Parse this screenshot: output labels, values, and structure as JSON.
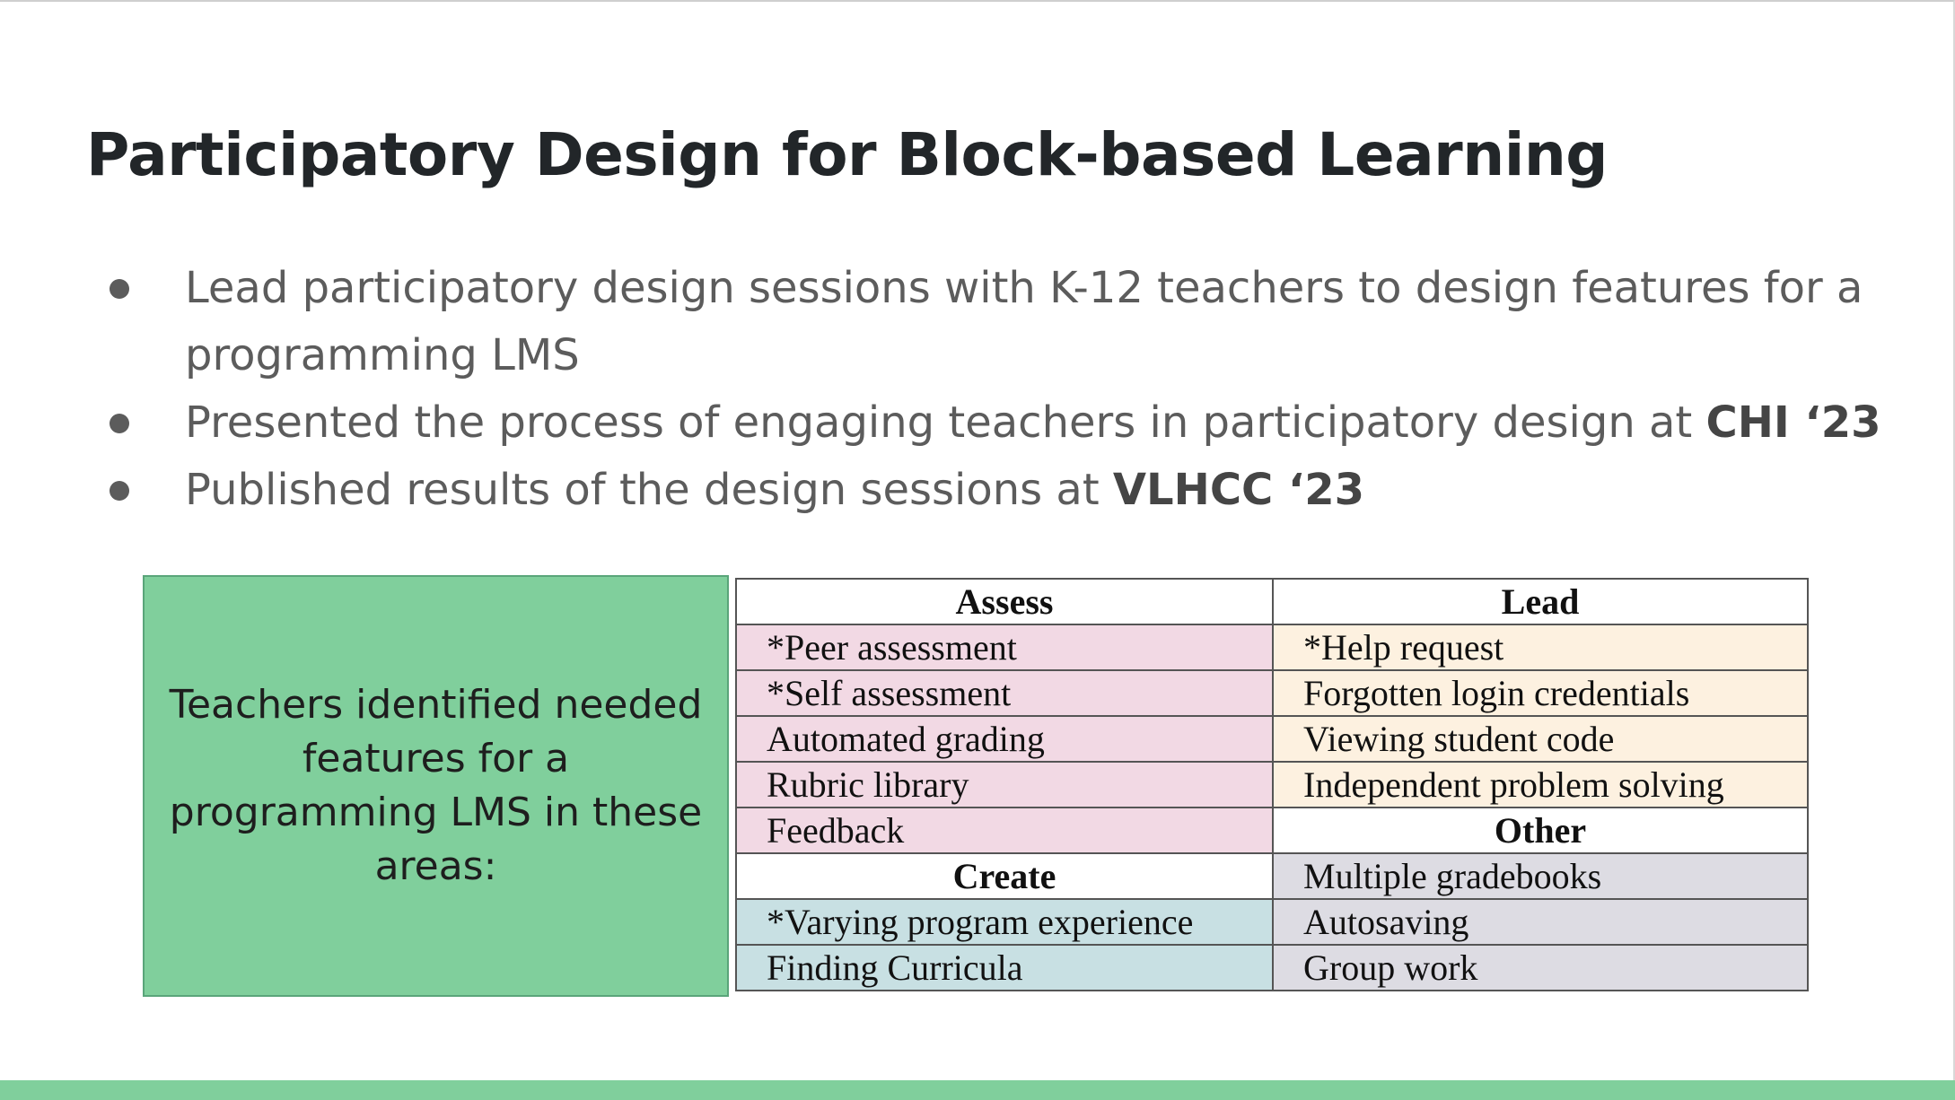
{
  "slide": {
    "title": "Participatory Design for Block-based Learning",
    "bullets": [
      {
        "text": "Lead participatory design sessions with K-12 teachers to design features for a programming LMS",
        "bold": ""
      },
      {
        "text": "Presented the process of engaging teachers in participatory design at ",
        "bold": "CHI ‘23"
      },
      {
        "text": "Published results of the design sessions at ",
        "bold": "VLHCC ‘23"
      }
    ],
    "callout": "Teachers identified needed features for a programming LMS in these areas:",
    "table": {
      "assess_header": "Assess",
      "lead_header": "Lead",
      "create_header": "Create",
      "other_header": "Other",
      "assess": [
        "*Peer assessment",
        "*Self assessment",
        "Automated grading",
        "Rubric library",
        "Feedback"
      ],
      "lead": [
        "*Help request",
        "Forgotten login credentials",
        "Viewing student code",
        "Independent problem solving"
      ],
      "create": [
        "*Varying program experience",
        "Finding Curricula"
      ],
      "other": [
        "Multiple gradebooks",
        "Autosaving",
        "Group work"
      ]
    },
    "colors": {
      "accent_green": "#80cf9c",
      "assess_bg": "#f2d9e4",
      "lead_bg": "#fdf1e0",
      "create_bg": "#c8e0e3",
      "other_bg": "#dddce3"
    }
  }
}
